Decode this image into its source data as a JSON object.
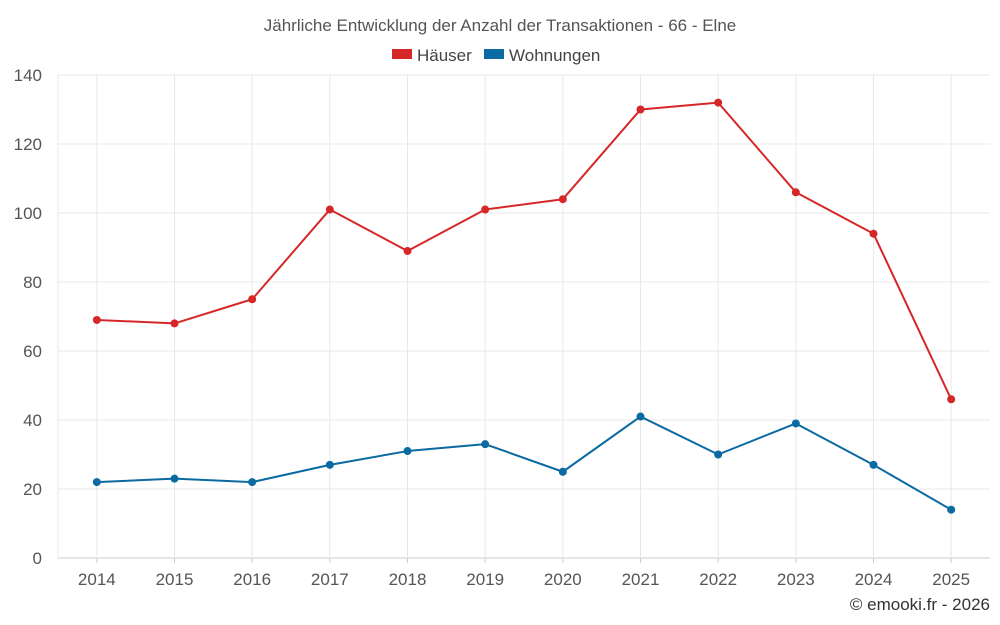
{
  "chart_data": {
    "type": "line",
    "title": "Jährliche Entwicklung der Anzahl der Transaktionen - 66 - Elne",
    "categories": [
      "2014",
      "2015",
      "2016",
      "2017",
      "2018",
      "2019",
      "2020",
      "2021",
      "2022",
      "2023",
      "2024",
      "2025"
    ],
    "series": [
      {
        "name": "Häuser",
        "color": "#d62728",
        "values": [
          69,
          68,
          75,
          101,
          89,
          101,
          104,
          130,
          132,
          106,
          94,
          46
        ]
      },
      {
        "name": "Wohnungen",
        "color": "#0a6aa1",
        "values": [
          22,
          23,
          22,
          27,
          31,
          33,
          25,
          41,
          30,
          39,
          27,
          14
        ]
      }
    ],
    "ylim": [
      0,
      140
    ],
    "yticks": [
      "0",
      "20",
      "40",
      "60",
      "80",
      "100",
      "120",
      "140"
    ],
    "grid": true,
    "legend": "top-center",
    "xlabel": "",
    "ylabel": ""
  },
  "credit": "© emooki.fr - 2026"
}
